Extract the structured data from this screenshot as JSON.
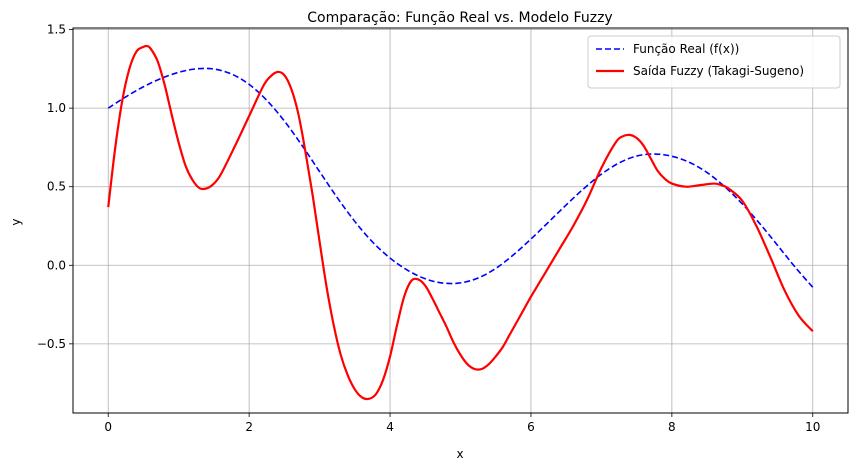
{
  "chart_data": {
    "type": "line",
    "title": "Comparação: Função Real vs. Modelo Fuzzy",
    "xlabel": "x",
    "ylabel": "y",
    "xlim": [
      -0.5,
      10.5
    ],
    "ylim": [
      -0.94,
      1.51
    ],
    "xticks": [
      0,
      2,
      4,
      6,
      8,
      10
    ],
    "xtick_labels": [
      "0",
      "2",
      "4",
      "6",
      "8",
      "10"
    ],
    "yticks": [
      -0.5,
      0.0,
      0.5,
      1.0,
      1.5
    ],
    "ytick_labels": [
      "−0.5",
      "0.0",
      "0.5",
      "1.0",
      "1.5"
    ],
    "grid": true,
    "legend_position": "top-right",
    "series": [
      {
        "name": "Função Real (f(x))",
        "color": "#0000ff",
        "style": "dashed",
        "x": [
          0,
          0.25,
          0.5,
          0.75,
          1.0,
          1.25,
          1.5,
          1.75,
          2.0,
          2.25,
          2.5,
          2.75,
          3.0,
          3.25,
          3.5,
          3.75,
          4.0,
          4.25,
          4.5,
          4.75,
          5.0,
          5.25,
          5.5,
          5.75,
          6.0,
          6.25,
          6.5,
          6.75,
          7.0,
          7.25,
          7.5,
          7.75,
          8.0,
          8.25,
          8.5,
          8.75,
          9.0,
          9.25,
          9.5,
          9.75,
          10.0
        ],
        "y": [
          1.0,
          1.072,
          1.136,
          1.189,
          1.228,
          1.25,
          1.249,
          1.217,
          1.151,
          1.05,
          0.918,
          0.763,
          0.596,
          0.431,
          0.279,
          0.149,
          0.046,
          -0.032,
          -0.086,
          -0.113,
          -0.112,
          -0.081,
          -0.02,
          0.066,
          0.167,
          0.275,
          0.384,
          0.488,
          0.58,
          0.651,
          0.695,
          0.708,
          0.694,
          0.655,
          0.59,
          0.5,
          0.39,
          0.264,
          0.127,
          -0.012,
          -0.14
        ]
      },
      {
        "name": "Saída Fuzzy (Takagi-Sugeno)",
        "color": "#ff0000",
        "style": "solid",
        "x": [
          0,
          0.1,
          0.2,
          0.3,
          0.4,
          0.5,
          0.55,
          0.6,
          0.7,
          0.8,
          0.9,
          1.0,
          1.1,
          1.2,
          1.3,
          1.4,
          1.5,
          1.6,
          1.8,
          2.0,
          2.2,
          2.3,
          2.4,
          2.5,
          2.6,
          2.7,
          2.8,
          2.9,
          3.0,
          3.1,
          3.2,
          3.3,
          3.4,
          3.5,
          3.6,
          3.7,
          3.8,
          3.9,
          4.0,
          4.1,
          4.2,
          4.3,
          4.4,
          4.5,
          4.6,
          4.7,
          4.8,
          4.9,
          5.0,
          5.1,
          5.2,
          5.3,
          5.4,
          5.5,
          5.6,
          5.7,
          5.8,
          5.9,
          6.0,
          6.2,
          6.4,
          6.6,
          6.8,
          7.0,
          7.2,
          7.3,
          7.4,
          7.5,
          7.6,
          7.7,
          7.8,
          7.9,
          8.0,
          8.2,
          8.4,
          8.6,
          8.7,
          8.8,
          9.0,
          9.2,
          9.4,
          9.6,
          9.8,
          10.0
        ],
        "y": [
          0.37,
          0.75,
          1.05,
          1.25,
          1.36,
          1.39,
          1.395,
          1.38,
          1.3,
          1.15,
          0.96,
          0.78,
          0.63,
          0.54,
          0.49,
          0.49,
          0.52,
          0.58,
          0.76,
          0.95,
          1.14,
          1.2,
          1.23,
          1.21,
          1.12,
          0.96,
          0.72,
          0.45,
          0.15,
          -0.14,
          -0.38,
          -0.57,
          -0.7,
          -0.79,
          -0.84,
          -0.85,
          -0.82,
          -0.73,
          -0.58,
          -0.38,
          -0.2,
          -0.1,
          -0.09,
          -0.13,
          -0.21,
          -0.3,
          -0.39,
          -0.49,
          -0.57,
          -0.63,
          -0.66,
          -0.66,
          -0.63,
          -0.58,
          -0.52,
          -0.44,
          -0.36,
          -0.28,
          -0.2,
          -0.05,
          0.1,
          0.25,
          0.42,
          0.62,
          0.78,
          0.82,
          0.83,
          0.81,
          0.76,
          0.68,
          0.6,
          0.55,
          0.52,
          0.5,
          0.51,
          0.52,
          0.51,
          0.49,
          0.41,
          0.25,
          0.05,
          -0.16,
          -0.32,
          -0.42
        ]
      }
    ]
  }
}
